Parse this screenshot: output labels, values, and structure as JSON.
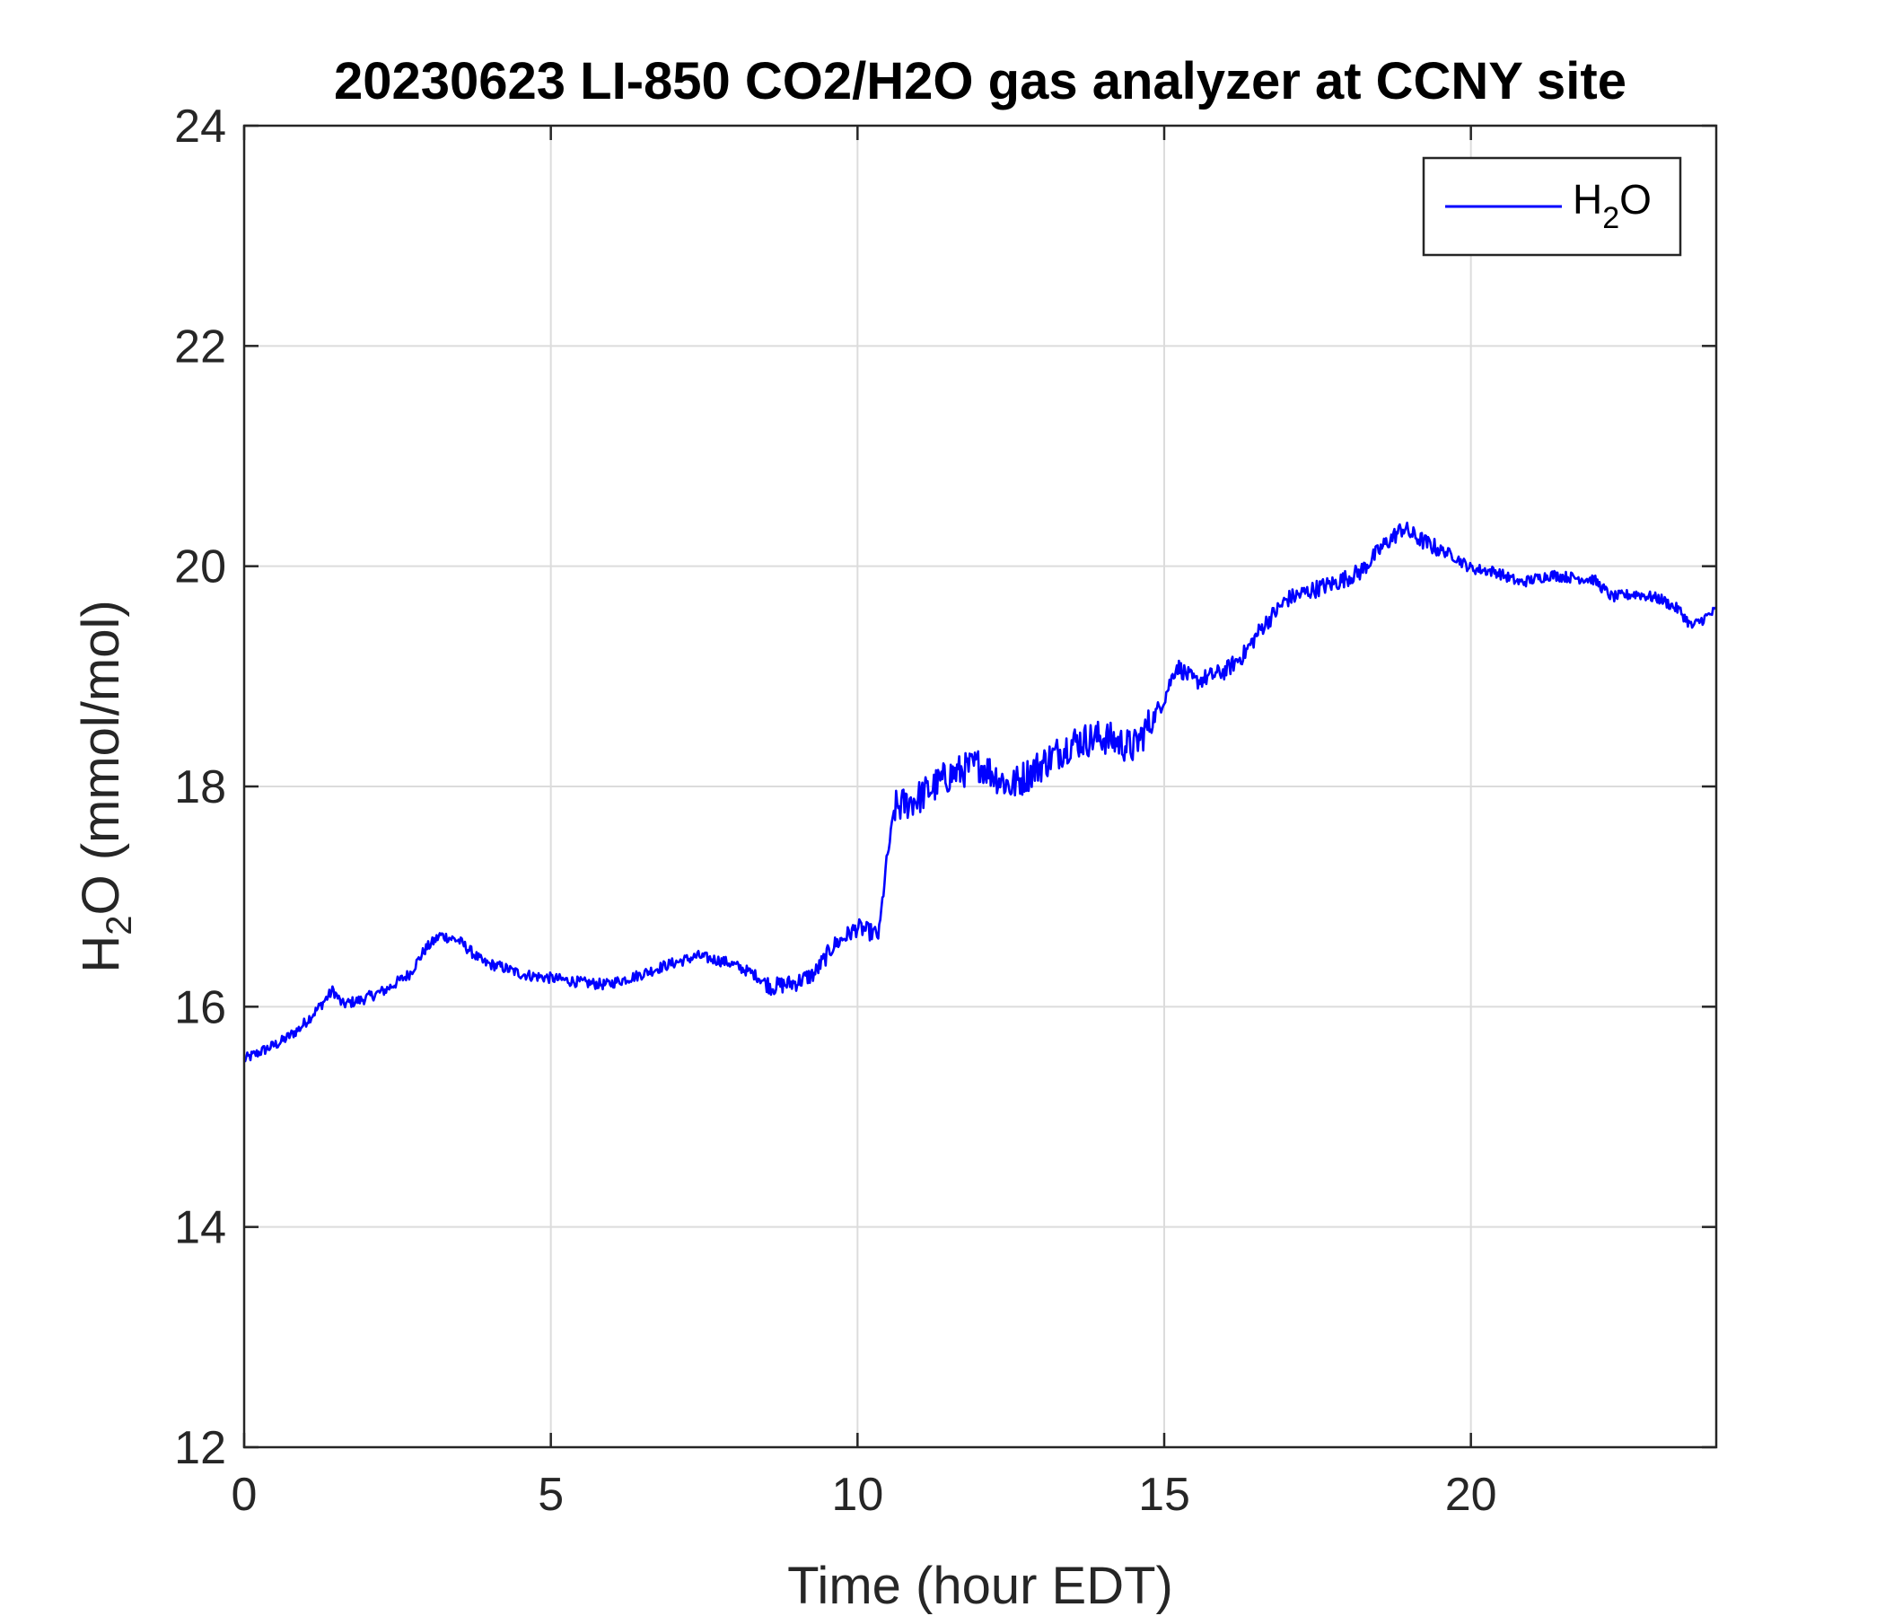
{
  "chart_data": {
    "type": "line",
    "title": "20230623 LI-850 CO2/H2O gas analyzer at CCNY site",
    "xlabel": "Time (hour EDT)",
    "ylabel": {
      "main": "H",
      "sub": "2",
      "rest": "O (mmol/mol)"
    },
    "xlim": [
      0,
      24
    ],
    "ylim": [
      12,
      24
    ],
    "xticks": [
      0,
      5,
      10,
      15,
      20
    ],
    "yticks": [
      12,
      14,
      16,
      18,
      20,
      22,
      24
    ],
    "grid": true,
    "legend": {
      "position": "top-right"
    },
    "series": [
      {
        "name": "H2O",
        "name_parts": {
          "main": "H",
          "sub": "2",
          "rest": "O"
        },
        "color": "#0000ff",
        "noise_amplitude": 0.05,
        "x": [
          0.0,
          0.3,
          0.6,
          0.9,
          1.2,
          1.45,
          1.6,
          1.9,
          2.3,
          2.7,
          2.95,
          3.2,
          3.5,
          3.9,
          4.2,
          4.5,
          4.7,
          5.0,
          5.5,
          5.9,
          6.4,
          6.9,
          7.4,
          7.9,
          8.3,
          8.6,
          9.0,
          9.3,
          9.6,
          10.0,
          10.35,
          10.45,
          10.6,
          11.0,
          11.5,
          12.0,
          12.5,
          13.0,
          13.5,
          14.0,
          14.5,
          14.8,
          15.0,
          15.2,
          15.5,
          16.0,
          16.3,
          16.6,
          17.0,
          17.5,
          17.8,
          18.2,
          18.6,
          18.9,
          19.0,
          19.3,
          19.7,
          20.0,
          20.4,
          20.8,
          21.3,
          21.6,
          22.0,
          22.3,
          22.7,
          23.1,
          23.4,
          23.6,
          24.0
        ],
        "y": [
          15.52,
          15.6,
          15.68,
          15.8,
          15.98,
          16.15,
          16.02,
          16.06,
          16.15,
          16.3,
          16.52,
          16.65,
          16.6,
          16.4,
          16.36,
          16.3,
          16.28,
          16.26,
          16.22,
          16.2,
          16.28,
          16.38,
          16.46,
          16.4,
          16.3,
          16.18,
          16.22,
          16.3,
          16.55,
          16.72,
          16.65,
          17.2,
          17.8,
          17.9,
          18.1,
          18.2,
          18.0,
          18.2,
          18.4,
          18.45,
          18.35,
          18.6,
          18.8,
          19.1,
          18.95,
          19.05,
          19.2,
          19.45,
          19.7,
          19.8,
          19.85,
          19.95,
          20.2,
          20.35,
          20.3,
          20.2,
          20.1,
          19.98,
          19.95,
          19.85,
          19.92,
          19.9,
          19.88,
          19.72,
          19.75,
          19.7,
          19.6,
          19.45,
          19.6
        ]
      }
    ]
  }
}
